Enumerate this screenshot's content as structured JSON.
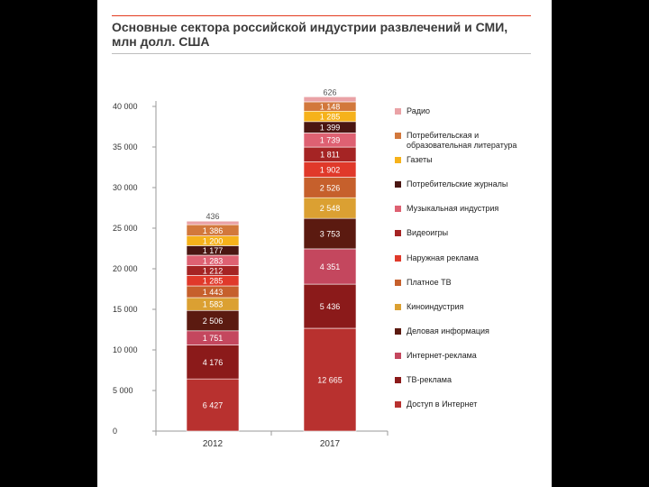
{
  "title": "Основные сектора российской индустрии развлечений и СМИ, млн долл. США",
  "chart_data": {
    "type": "bar",
    "stacked": true,
    "title": "Основные сектора российской индустрии развлечений и СМИ, млн долл. США",
    "xlabel": "",
    "ylabel": "",
    "categories": [
      "2012",
      "2017"
    ],
    "ylim": [
      0,
      40000
    ],
    "yticks": [
      0,
      5000,
      10000,
      15000,
      20000,
      25000,
      30000,
      35000,
      40000
    ],
    "ytick_labels": [
      "0",
      "5 000",
      "10 000",
      "15 000",
      "20 000",
      "25 000",
      "30 000",
      "35 000",
      "40 000"
    ],
    "series": [
      {
        "name": "Доступ в Интернет",
        "color": "#b8312f",
        "values": [
          6427,
          12665
        ],
        "labels": [
          "6 427",
          "12 665"
        ]
      },
      {
        "name": "ТВ-реклама",
        "color": "#8b1a1a",
        "values": [
          4176,
          5436
        ],
        "labels": [
          "4 176",
          "5 436"
        ]
      },
      {
        "name": "Интернет-реклама",
        "color": "#c4475e",
        "values": [
          1751,
          4351
        ],
        "labels": [
          "1 751",
          "4 351"
        ]
      },
      {
        "name": "Деловая информация",
        "color": "#5b1a10",
        "values": [
          2506,
          3753
        ],
        "labels": [
          "2 506",
          "3 753"
        ]
      },
      {
        "name": "Киноиндустрия",
        "color": "#dba032",
        "values": [
          1583,
          2548
        ],
        "labels": [
          "1 583",
          "2 548"
        ]
      },
      {
        "name": "Платное ТВ",
        "color": "#c6602c",
        "values": [
          1443,
          2526
        ],
        "labels": [
          "1 443",
          "2 526"
        ]
      },
      {
        "name": "Наружная реклама",
        "color": "#e0392a",
        "values": [
          1285,
          1902
        ],
        "labels": [
          "1 285",
          "1 902"
        ]
      },
      {
        "name": "Видеоигры",
        "color": "#a52424",
        "values": [
          1212,
          1811
        ],
        "labels": [
          "1 212",
          "1 811"
        ]
      },
      {
        "name": "Музыкальная индустрия",
        "color": "#de6172",
        "values": [
          1283,
          1739
        ],
        "labels": [
          "1 283",
          "1 739"
        ]
      },
      {
        "name": "Потребительские журналы",
        "color": "#4a1612",
        "values": [
          1177,
          1399
        ],
        "labels": [
          "1 177",
          "1 399"
        ]
      },
      {
        "name": "Газеты",
        "color": "#f6b21b",
        "values": [
          1200,
          1285
        ],
        "labels": [
          "1 200",
          "1 285"
        ]
      },
      {
        "name": "Потребительская и образовательная литература",
        "color": "#d2783c",
        "values": [
          1386,
          1148
        ],
        "labels": [
          "1 386",
          "1 148"
        ]
      },
      {
        "name": "Радио",
        "color": "#eaa2a6",
        "values": [
          436,
          626
        ],
        "labels": [
          "436",
          "626"
        ]
      }
    ],
    "legend_order": [
      "Радио",
      "Потребительская и образовательная литература",
      "Газеты",
      "Потребительские журналы",
      "Музыкальная индустрия",
      "Видеоигры",
      "Наружная реклама",
      "Платное ТВ",
      "Киноиндустрия",
      "Деловая информация",
      "Интернет-реклама",
      "ТВ-реклама",
      "Доступ в Интернет"
    ],
    "legend_lines": {
      "Потребительская и образовательная литература": [
        "Потребительская и",
        "образовательная литература"
      ]
    }
  }
}
